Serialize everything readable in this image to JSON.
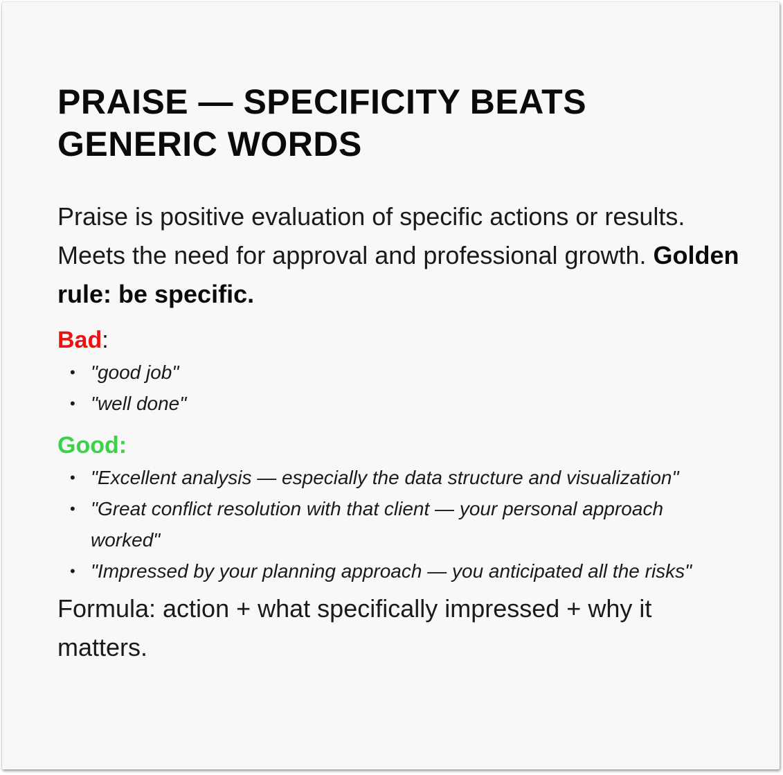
{
  "slide": {
    "title": "PRAISE — SPECIFICITY BEATS GENERIC WORDS",
    "intro_text": "Praise is positive evaluation of specific actions or results. Meets the need for approval and professional growth. ",
    "golden_rule": "Golden rule: be specific.",
    "bad": {
      "label": "Bad",
      "colon": ":",
      "items": [
        "\"good job\"",
        "\"well done\""
      ]
    },
    "good": {
      "label": "Good:",
      "items": [
        "\"Excellent analysis — especially the data structure and visualization\"",
        "\"Great conflict resolution with that client — your personal approach worked\"",
        "\"Impressed by your planning approach — you anticipated all the risks\""
      ]
    },
    "formula": "Formula: action + what specifically impressed + why it matters.",
    "bullet_glyph": "•",
    "colors": {
      "bad": "#ee1111",
      "good": "#3ad24a",
      "background": "#f8f8f8",
      "text": "#111111"
    }
  }
}
